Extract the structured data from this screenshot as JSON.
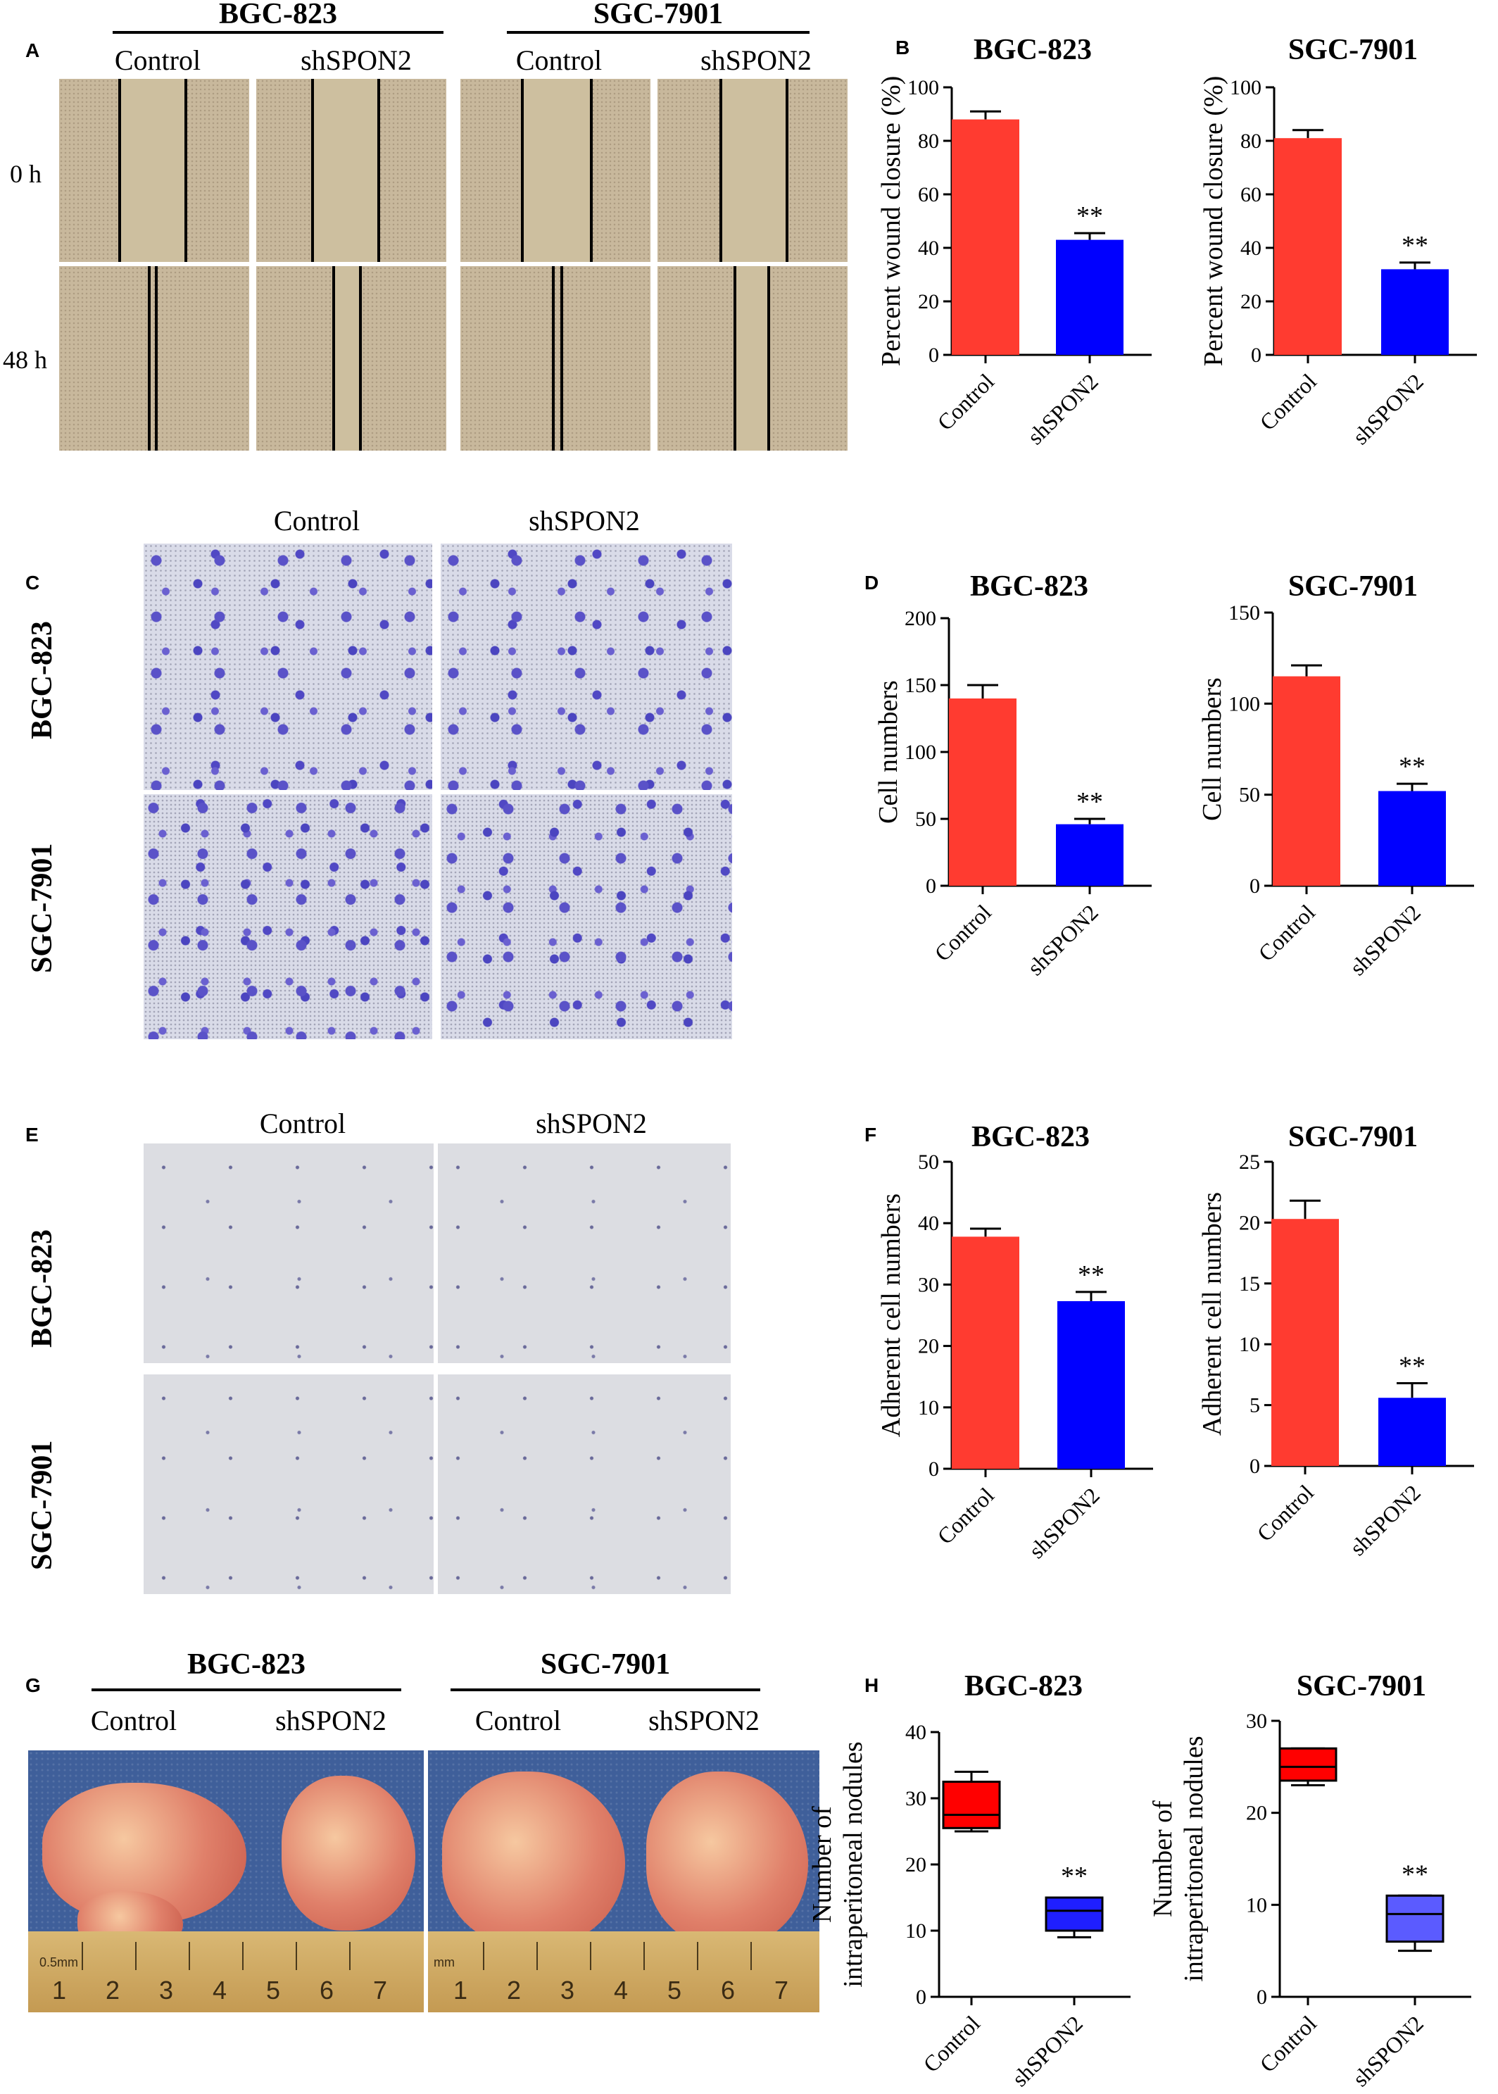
{
  "panels": {
    "A": {
      "letter": "A",
      "groups": [
        "BGC-823",
        "SGC-7901"
      ],
      "conditions": [
        "Control",
        "shSPON2",
        "Control",
        "shSPON2"
      ],
      "rows": [
        "0 h",
        "48 h"
      ]
    },
    "C": {
      "letter": "C",
      "conditions": [
        "Control",
        "shSPON2"
      ],
      "rows": [
        "BGC-823",
        "SGC-7901"
      ]
    },
    "E": {
      "letter": "E",
      "conditions": [
        "Control",
        "shSPON2"
      ],
      "rows": [
        "BGC-823",
        "SGC-7901"
      ]
    },
    "G": {
      "letter": "G",
      "groups": [
        "BGC-823",
        "SGC-7901"
      ],
      "conditions": [
        "Control",
        "shSPON2",
        "Control",
        "shSPON2"
      ],
      "ruler_left": [
        "0.5mm",
        "1",
        "2",
        "3",
        "4",
        "5",
        "6",
        "7"
      ],
      "ruler_right": [
        "mm",
        "1",
        "2",
        "3",
        "4",
        "5",
        "6",
        "7"
      ]
    }
  },
  "colors": {
    "control": "#ff3b30",
    "shspon2": "#0000ff",
    "box_control": "#ff0000",
    "box_shspon2_bgc": "#1f1fff",
    "box_shspon2_sgc": "#5b5bff"
  },
  "chart_data": [
    {
      "id": "B1",
      "panel": "B",
      "type": "bar",
      "title": "BGC-823",
      "categories": [
        "Control",
        "shSPON2"
      ],
      "values": [
        88,
        43
      ],
      "errors": [
        3,
        2.5
      ],
      "ylabel": "Percent wound closure (%)",
      "ylim": [
        0,
        100
      ],
      "yticks": [
        "0",
        "20",
        "40",
        "60",
        "80",
        "100"
      ],
      "annotations": [
        "",
        "**"
      ]
    },
    {
      "id": "B2",
      "panel": "B",
      "type": "bar",
      "title": "SGC-7901",
      "categories": [
        "Control",
        "shSPON2"
      ],
      "values": [
        81,
        32
      ],
      "errors": [
        3,
        2.5
      ],
      "ylabel": "Percent wound closure (%)",
      "ylim": [
        0,
        100
      ],
      "yticks": [
        "0",
        "20",
        "40",
        "60",
        "80",
        "100"
      ],
      "annotations": [
        "",
        "**"
      ]
    },
    {
      "id": "D1",
      "panel": "D",
      "type": "bar",
      "title": "BGC-823",
      "categories": [
        "Control",
        "shSPON2"
      ],
      "values": [
        140,
        46
      ],
      "errors": [
        10,
        4
      ],
      "ylabel": "Cell numbers",
      "ylim": [
        0,
        200
      ],
      "yticks": [
        "0",
        "50",
        "100",
        "150",
        "200"
      ],
      "annotations": [
        "",
        "**"
      ]
    },
    {
      "id": "D2",
      "panel": "D",
      "type": "bar",
      "title": "SGC-7901",
      "categories": [
        "Control",
        "shSPON2"
      ],
      "values": [
        115,
        52
      ],
      "errors": [
        6,
        4
      ],
      "ylabel": "Cell numbers",
      "ylim": [
        0,
        150
      ],
      "yticks": [
        "0",
        "50",
        "100",
        "150"
      ],
      "annotations": [
        "",
        "**"
      ]
    },
    {
      "id": "F1",
      "panel": "F",
      "type": "bar",
      "title": "BGC-823",
      "categories": [
        "Control",
        "shSPON2"
      ],
      "values": [
        37.8,
        27.3
      ],
      "errors": [
        1.3,
        1.5
      ],
      "ylabel": "Adherent cell numbers",
      "ylim": [
        0,
        50
      ],
      "yticks": [
        "0",
        "10",
        "20",
        "30",
        "40",
        "50"
      ],
      "annotations": [
        "",
        "**"
      ]
    },
    {
      "id": "F2",
      "panel": "F",
      "type": "bar",
      "title": "SGC-7901",
      "categories": [
        "Control",
        "shSPON2"
      ],
      "values": [
        20.3,
        5.6
      ],
      "errors": [
        1.5,
        1.2
      ],
      "ylabel": "Adherent cell numbers",
      "ylim": [
        0,
        25
      ],
      "yticks": [
        "0",
        "5",
        "10",
        "15",
        "20",
        "25"
      ],
      "annotations": [
        "",
        "**"
      ]
    },
    {
      "id": "H1",
      "panel": "H",
      "type": "box",
      "title": "BGC-823",
      "categories": [
        "Control",
        "shSPON2"
      ],
      "boxes": [
        {
          "min": 25,
          "q1": 25.5,
          "median": 27.5,
          "q3": 32.5,
          "max": 34
        },
        {
          "min": 9,
          "q1": 10,
          "median": 13,
          "q3": 15,
          "max": 15
        }
      ],
      "ylabel": "Number of intraperitoneal nodules",
      "ylabel_lines": [
        "Number of",
        "intraperitoneal nodules"
      ],
      "ylim": [
        0,
        40
      ],
      "yticks": [
        "0",
        "10",
        "20",
        "30",
        "40"
      ],
      "annotations": [
        "",
        "**"
      ]
    },
    {
      "id": "H2",
      "panel": "H",
      "type": "box",
      "title": "SGC-7901",
      "categories": [
        "Control",
        "shSPON2"
      ],
      "boxes": [
        {
          "min": 23,
          "q1": 23.5,
          "median": 25,
          "q3": 27,
          "max": 27
        },
        {
          "min": 5,
          "q1": 6,
          "median": 9,
          "q3": 11,
          "max": 11
        }
      ],
      "ylabel": "Number of intraperitoneal nodules",
      "ylabel_lines": [
        "Number of",
        "intraperitoneal nodules"
      ],
      "ylim": [
        0,
        30
      ],
      "yticks": [
        "0",
        "10",
        "20",
        "30"
      ],
      "annotations": [
        "",
        "**"
      ]
    }
  ],
  "panel_letters": {
    "B": "B",
    "D": "D",
    "F": "F",
    "H": "H"
  }
}
